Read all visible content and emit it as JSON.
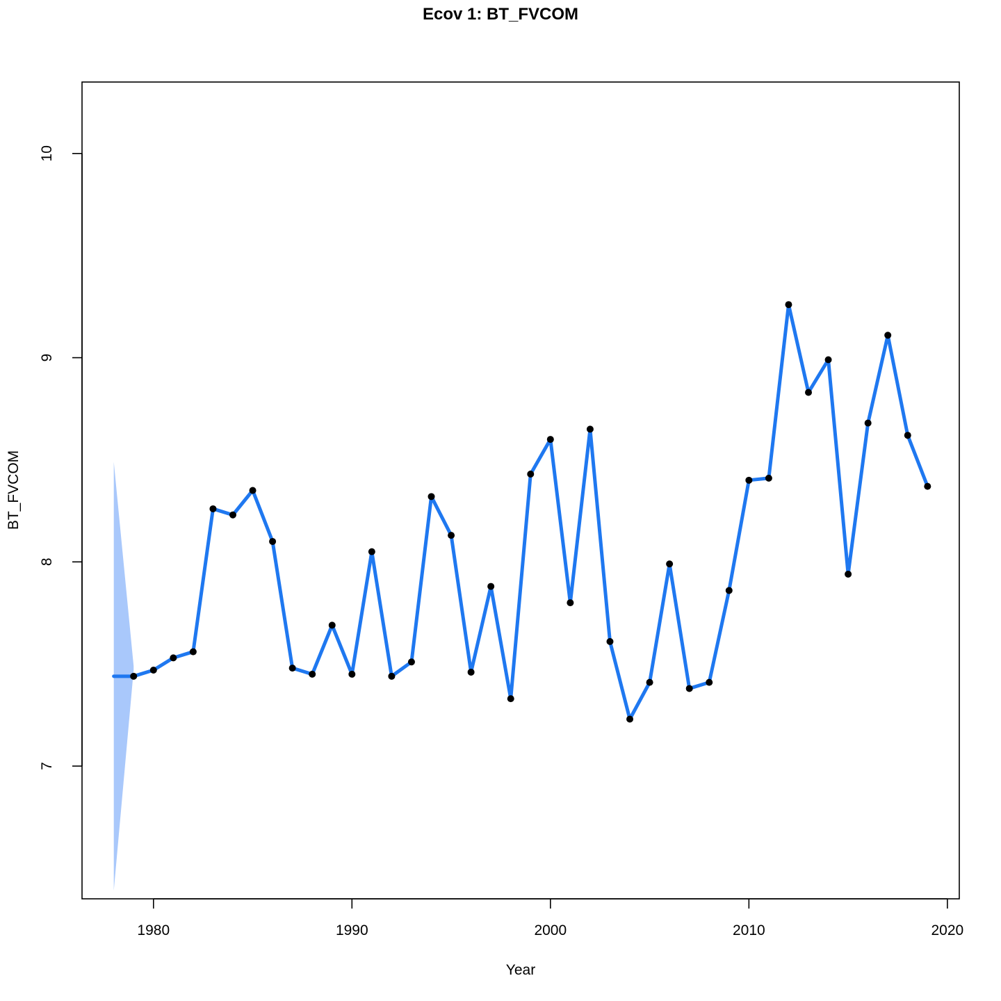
{
  "chart_data": {
    "type": "line",
    "title": "Ecov 1: BT_FVCOM",
    "xlabel": "Year",
    "ylabel": "BT_FVCOM",
    "xlim": [
      1976.4,
      2020.6
    ],
    "ylim": [
      6.35,
      10.35
    ],
    "x_ticks": [
      1980,
      1990,
      2000,
      2010,
      2020
    ],
    "y_ticks": [
      7,
      8,
      9,
      10
    ],
    "x_tick_labels": [
      "1980",
      "1990",
      "2000",
      "2010",
      "2020"
    ],
    "y_tick_labels": [
      "7",
      "8",
      "9",
      "10"
    ],
    "grid": false,
    "colors": {
      "line": "#1f78f0",
      "band": "#a9c8fb",
      "points": "#000000"
    },
    "observed": {
      "x": [
        1979,
        1980,
        1981,
        1982,
        1983,
        1984,
        1985,
        1986,
        1987,
        1988,
        1989,
        1990,
        1991,
        1992,
        1993,
        1994,
        1995,
        1996,
        1997,
        1998,
        1999,
        2000,
        2001,
        2002,
        2003,
        2004,
        2005,
        2006,
        2007,
        2008,
        2009,
        2010,
        2011,
        2012,
        2013,
        2014,
        2015,
        2016,
        2017,
        2018,
        2019
      ],
      "y": [
        7.44,
        7.47,
        7.53,
        7.56,
        8.26,
        8.23,
        8.35,
        8.1,
        7.48,
        7.45,
        7.69,
        7.45,
        8.05,
        7.44,
        7.51,
        8.32,
        8.13,
        7.46,
        7.88,
        7.33,
        8.43,
        8.6,
        7.8,
        8.65,
        7.61,
        7.23,
        7.41,
        7.99,
        7.38,
        7.41,
        7.86,
        8.4,
        8.41,
        9.26,
        8.83,
        8.99,
        7.94,
        8.68,
        9.11,
        8.62,
        8.37
      ]
    },
    "predicted": {
      "x": [
        1978,
        1979,
        1980,
        1981,
        1982,
        1983,
        1984,
        1985,
        1986,
        1987,
        1988,
        1989,
        1990,
        1991,
        1992,
        1993,
        1994,
        1995,
        1996,
        1997,
        1998,
        1999,
        2000,
        2001,
        2002,
        2003,
        2004,
        2005,
        2006,
        2007,
        2008,
        2009,
        2010,
        2011,
        2012,
        2013,
        2014,
        2015,
        2016,
        2017,
        2018,
        2019
      ],
      "y": [
        7.44,
        7.44,
        7.47,
        7.53,
        7.56,
        8.26,
        8.23,
        8.35,
        8.1,
        7.48,
        7.45,
        7.69,
        7.45,
        8.05,
        7.44,
        7.51,
        8.32,
        8.13,
        7.46,
        7.88,
        7.33,
        8.43,
        8.6,
        7.8,
        8.65,
        7.61,
        7.23,
        7.41,
        7.99,
        7.38,
        7.41,
        7.86,
        8.4,
        8.41,
        9.26,
        8.83,
        8.99,
        7.94,
        8.68,
        9.11,
        8.62,
        8.37
      ]
    },
    "ci_band": {
      "x": [
        1978,
        1979
      ],
      "lower": [
        6.39,
        7.47
      ],
      "upper": [
        8.49,
        7.49
      ]
    }
  }
}
